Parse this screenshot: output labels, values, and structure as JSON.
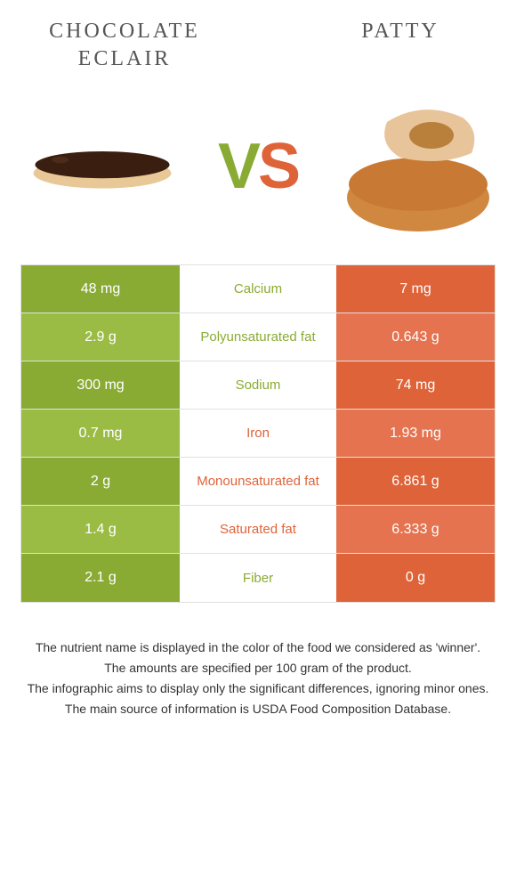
{
  "header": {
    "left_title_line1": "CHOCOLATE",
    "left_title_line2": "ECLAIR",
    "right_title": "PATTY",
    "vs_v": "V",
    "vs_s": "S"
  },
  "colors": {
    "left": "#8aab33",
    "right": "#df6339",
    "left_alt": "#9bbc44",
    "right_alt": "#e57350",
    "text_mid_left": "#8aab33",
    "text_mid_right": "#df6339"
  },
  "rows": [
    {
      "left": "48 mg",
      "label": "Calcium",
      "right": "7 mg",
      "winner": "left",
      "shade": "solid"
    },
    {
      "left": "2.9 g",
      "label": "Polyunsaturated fat",
      "right": "0.643 g",
      "winner": "left",
      "shade": "alt"
    },
    {
      "left": "300 mg",
      "label": "Sodium",
      "right": "74 mg",
      "winner": "left",
      "shade": "solid"
    },
    {
      "left": "0.7 mg",
      "label": "Iron",
      "right": "1.93 mg",
      "winner": "right",
      "shade": "alt"
    },
    {
      "left": "2 g",
      "label": "Monounsaturated fat",
      "right": "6.861 g",
      "winner": "right",
      "shade": "solid"
    },
    {
      "left": "1.4 g",
      "label": "Saturated fat",
      "right": "6.333 g",
      "winner": "right",
      "shade": "alt"
    },
    {
      "left": "2.1 g",
      "label": "Fiber",
      "right": "0 g",
      "winner": "left",
      "shade": "solid"
    }
  ],
  "footnotes": [
    "The nutrient name is displayed in the color of the food we considered as 'winner'.",
    "The amounts are specified per 100 gram of the product.",
    "The infographic aims to display only the significant differences, ignoring minor ones.",
    "The main source of information is USDA Food Composition Database."
  ]
}
